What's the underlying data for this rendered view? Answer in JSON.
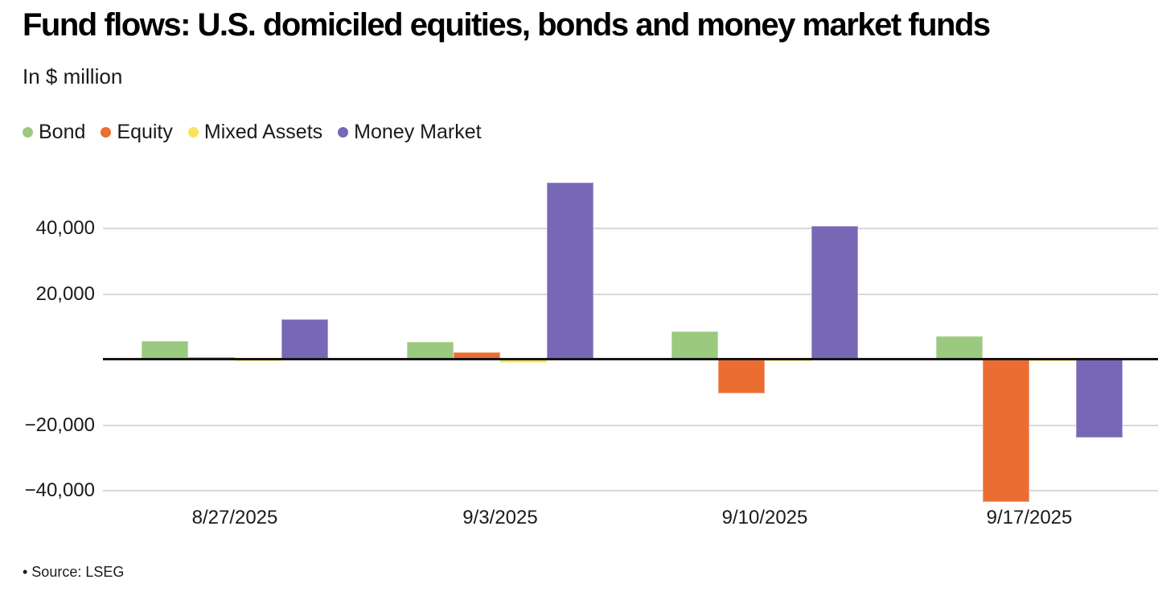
{
  "header": {
    "title": "Fund flows: U.S. domiciled equities, bonds and money market funds",
    "subtitle": "In $ million"
  },
  "source_note": "• Source: LSEG",
  "colors": {
    "bond": "#9bc97f",
    "equity": "#ec6d32",
    "mixed_assets": "#f8e45c",
    "money_market": "#7767b5",
    "gridline": "#d8d8d8",
    "zero_line": "#141414",
    "text": "#1a1a1a"
  },
  "chart_data": {
    "type": "bar",
    "title": "Fund flows: U.S. domiciled equities, bonds and money market funds",
    "subtitle": "In $ million",
    "unit": "$ million",
    "categories": [
      "8/27/2025",
      "9/3/2025",
      "9/10/2025",
      "9/17/2025"
    ],
    "series": [
      {
        "name": "Bond",
        "color": "#9bc97f",
        "values": [
          5600,
          5400,
          8600,
          7200
        ]
      },
      {
        "name": "Equity",
        "color": "#ec6d32",
        "values": [
          700,
          2200,
          -10300,
          -43400
        ]
      },
      {
        "name": "Mixed Assets",
        "color": "#f8e45c",
        "values": [
          -500,
          -900,
          -300,
          -400
        ]
      },
      {
        "name": "Money Market",
        "color": "#7767b5",
        "values": [
          12300,
          54000,
          40700,
          -23800
        ]
      }
    ],
    "y_ticks": [
      40000,
      20000,
      -20000,
      -40000
    ],
    "y_tick_labels": [
      "40,000",
      "20,000",
      "−20,000",
      "−40,000"
    ],
    "ylim": [
      -45000,
      57000
    ],
    "grid": "horizontal",
    "zero_baseline": true,
    "legend_position": "top-left"
  }
}
